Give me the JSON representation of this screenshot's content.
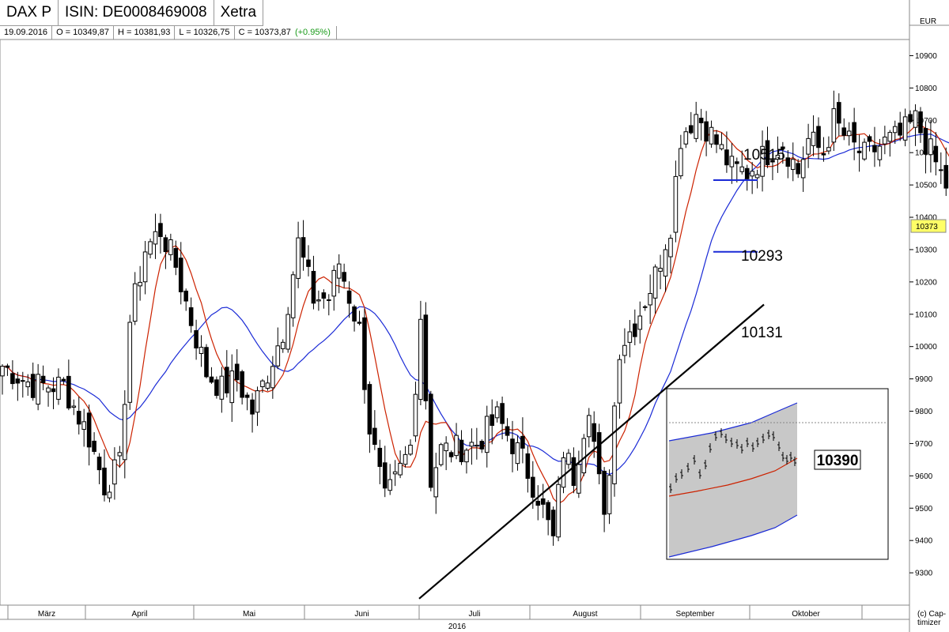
{
  "header": {
    "instrument": "DAX P",
    "isin": "ISIN: DE0008469008",
    "exchange": "Xetra",
    "currency": "EUR"
  },
  "quote_bar": {
    "date": "19.09.2016",
    "open": "O = 10349,87",
    "high": "H = 10381,93",
    "low": "L = 10326,75",
    "close": "C = 10373,87",
    "change": "(+0.95%)"
  },
  "footer": {
    "year": "2016",
    "copyright": "(c) Cap-\ntimizer"
  },
  "colors": {
    "sma_short": "#cc2200",
    "sma_long": "#1a2ad6",
    "trendline": "#000000",
    "level_line": "#1a2ad6",
    "change_positive": "#1a9a1a"
  },
  "chart_data": {
    "type": "candlestick",
    "title": "",
    "ylim": [
      9200,
      10950
    ],
    "y_ticks": [
      9300,
      9400,
      9500,
      9600,
      9700,
      9800,
      9900,
      10000,
      10100,
      10200,
      10300,
      10400,
      10500,
      10600,
      10700,
      10800,
      10900
    ],
    "months": [
      "März",
      "April",
      "Mai",
      "Juni",
      "Juli",
      "August",
      "September",
      "Oktober"
    ],
    "last_price_label": "10373",
    "annotations": [
      {
        "text": "10515",
        "value": 10515
      },
      {
        "text": "10293",
        "value": 10293
      },
      {
        "text": "10131",
        "value": 10131
      }
    ],
    "trendline": [
      {
        "day": 131,
        "value": 9220
      },
      {
        "day": 241,
        "value": 10130
      }
    ],
    "ohlc": [],
    "sma_short": [],
    "sma_long": [],
    "inset": {
      "label": "10390"
    }
  }
}
